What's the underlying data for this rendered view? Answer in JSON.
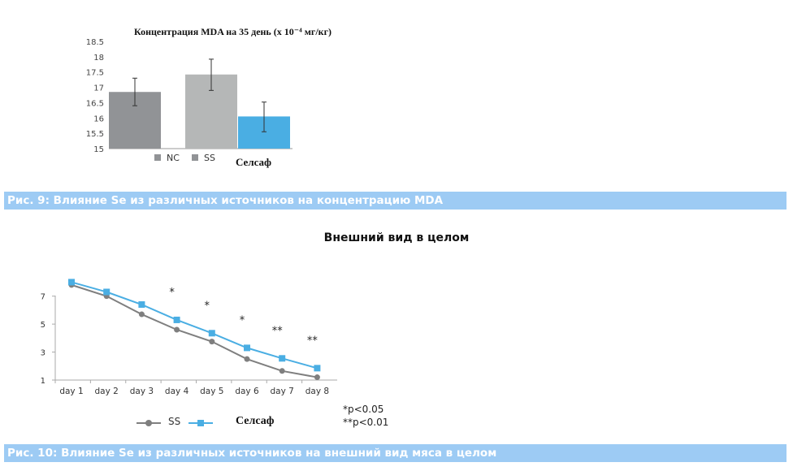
{
  "figure9": {
    "caption": "Рис. 9: Влияние Se из различных источников на концентрацию MDA"
  },
  "figure10": {
    "title": "Внешний вид в целом",
    "caption": "Рис. 10: Влияние Se из различных источников на внешний вид мяса в целом",
    "notes": [
      "*p<0.05",
      "**p<0.01"
    ]
  },
  "colors": {
    "nc": "#919396",
    "ss": "#b5b7b7",
    "selsaf": "#4aaee3",
    "ss_line": "#7f7f7f",
    "caption_bg": "#9dcbf4"
  },
  "chart_data": [
    {
      "type": "bar",
      "title": "Концентрация MDA на 35 день (x 10⁻⁴ мг/кг)",
      "categories": [
        "NC",
        "SS",
        "Селсаф"
      ],
      "series": [
        {
          "name": "NC",
          "value": 16.85,
          "error": [
            16.4,
            17.3
          ]
        },
        {
          "name": "SS",
          "value": 17.42,
          "error": [
            16.9,
            17.92
          ]
        },
        {
          "name": "Селсаф",
          "value": 16.05,
          "error": [
            15.55,
            16.52
          ]
        }
      ],
      "ylim": [
        15,
        18.5
      ],
      "yticks": [
        "15",
        "15.5",
        "16",
        "16.5",
        "17",
        "17.5",
        "18",
        "18.5"
      ],
      "legend": "bottom"
    },
    {
      "type": "line",
      "x": [
        "day 1",
        "day 2",
        "day 3",
        "day 4",
        "day 5",
        "day 6",
        "day 7",
        "day 8"
      ],
      "series": [
        {
          "name": "SS",
          "values": [
            7.8,
            7.0,
            5.7,
            4.6,
            3.75,
            2.5,
            1.65,
            1.2
          ]
        },
        {
          "name": "Селсаф",
          "values": [
            8.0,
            7.3,
            6.4,
            5.3,
            4.35,
            3.3,
            2.55,
            1.85
          ]
        }
      ],
      "annotations": [
        "",
        "",
        "",
        "*",
        "*",
        "*",
        "**",
        "**"
      ],
      "ylim": [
        1,
        8.2
      ],
      "yticks": [
        "1",
        "3",
        "5",
        "7"
      ],
      "legend": "bottom"
    }
  ]
}
